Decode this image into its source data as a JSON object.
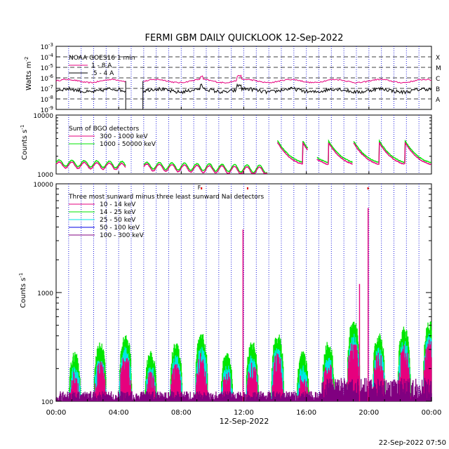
{
  "chart_data": {
    "type": "line",
    "title": "FERMI GBM DAILY QUICKLOOK  12-Sep-2022",
    "footer": "22-Sep-2022 07:50",
    "x_axis": {
      "tick_labels": [
        "00:00",
        "04:00",
        "08:00",
        "12:00",
        "16:00",
        "20:00",
        "00:00"
      ],
      "tick_hours": [
        0,
        4,
        8,
        12,
        16,
        20,
        24
      ],
      "label": "12-Sep-2022",
      "range_hours": [
        0,
        24
      ]
    },
    "panels": [
      {
        "id": "goes",
        "ylabel": "Watts m",
        "ylabel_sup": "-2",
        "scale": "log",
        "ylim_exp": [
          -9,
          -3
        ],
        "tick_exponents": [
          -3,
          -4,
          -5,
          -6,
          -7,
          -8,
          -9
        ],
        "flare_class_labels": [
          "X",
          "M",
          "C",
          "B",
          "A"
        ],
        "flare_class_exponents": [
          -4,
          -5,
          -6,
          -7,
          -8
        ],
        "legend_title": "NOAA GOES16 1 min",
        "series": [
          {
            "name": "1 - 8 A",
            "color": "#e6007e",
            "log_level": -6.3
          },
          {
            "name": ".5 - 4 A",
            "color": "#000000",
            "log_level": -7.2
          }
        ]
      },
      {
        "id": "bgo",
        "ylabel": "Counts s",
        "ylabel_sup": "-1",
        "scale": "log",
        "ylim": [
          1000,
          10000
        ],
        "tick_labels": [
          "10000",
          "1000"
        ],
        "legend_title": "Sum of BGO detectors",
        "series": [
          {
            "name": "300 - 1000 keV",
            "color": "#e6007e"
          },
          {
            "name": "1000 - 50000 keV",
            "color": "#00e600"
          }
        ]
      },
      {
        "id": "nai",
        "ylabel": "Counts s",
        "ylabel_sup": "-1",
        "scale": "log",
        "ylim": [
          100,
          10000
        ],
        "tick_labels": [
          "10000",
          "1000",
          "100"
        ],
        "legend_title": "Three most sunward minus three least sunward NaI detectors",
        "series": [
          {
            "name": "10 - 14 keV",
            "color": "#e6007e"
          },
          {
            "name": "14 - 25 keV",
            "color": "#00e600"
          },
          {
            "name": "25 - 50 keV",
            "color": "#00e6e6"
          },
          {
            "name": "50 - 100 keV",
            "color": "#0000e6"
          },
          {
            "name": "100 - 300 keV",
            "color": "#800080"
          }
        ],
        "flag_marks": [
          "F"
        ],
        "spikes": [
          {
            "hour": 11.95,
            "peak": 3800
          },
          {
            "hour": 19.95,
            "peak": 6000
          },
          {
            "hour": 19.4,
            "peak": 1200
          }
        ]
      }
    ],
    "saa_gaps_hours": [
      [
        4.45,
        5.6
      ],
      [
        13.5,
        14.1
      ],
      [
        16.1,
        16.65
      ]
    ],
    "bgo_burst_start_hours": [
      14.15,
      15.75,
      17.4,
      19.0,
      20.65,
      22.3
    ]
  }
}
